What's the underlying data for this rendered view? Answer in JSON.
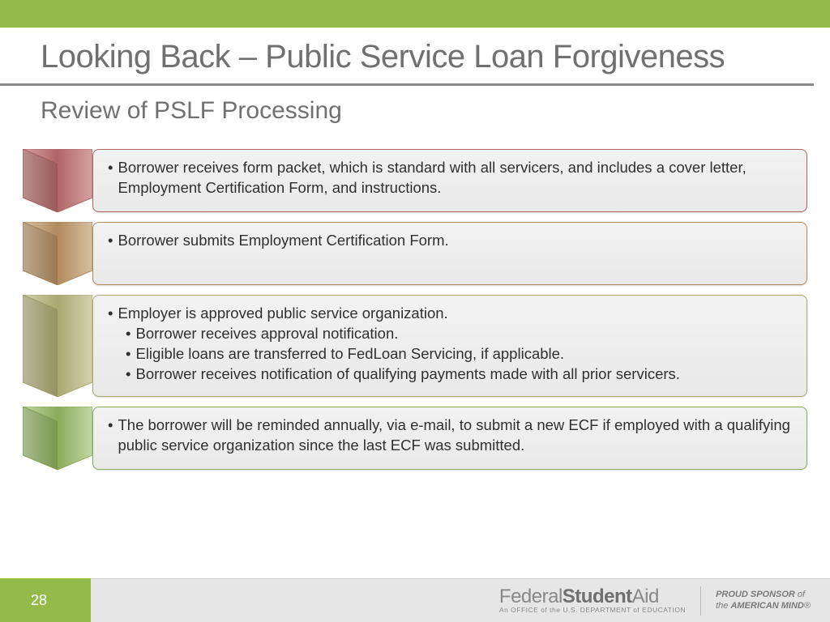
{
  "header": {
    "title_bold": "Looking Back",
    "title_sep": " – ",
    "title_light": "Public Service Loan Forgiveness"
  },
  "subtitle": "Review of PSLF Processing",
  "steps": [
    {
      "chevron_color": "#b06466",
      "chevron_light": "#d4a3a4",
      "border_color": "#b06466",
      "text": "Borrower receives form packet, which is standard with all servicers, and includes a cover letter, Employment Certification Form, and instructions.",
      "subs": []
    },
    {
      "chevron_color": "#b18a5c",
      "chevron_light": "#d6c0a3",
      "border_color": "#b18a5c",
      "text": "Borrower submits Employment Certification Form.",
      "subs": []
    },
    {
      "chevron_color": "#a9a86f",
      "chevron_light": "#d3d2b0",
      "border_color": "#a9a86f",
      "text": "Employer is approved public service organization.",
      "subs": [
        "Borrower receives approval notification.",
        "Eligible loans are transferred to FedLoan Servicing, if applicable.",
        "Borrower receives notification of qualifying payments made with all prior servicers."
      ]
    },
    {
      "chevron_color": "#8aab59",
      "chevron_light": "#c3d7a6",
      "border_color": "#8aab59",
      "text": "The borrower will be reminded annually, via e-mail, to submit a new ECF if employed with a qualifying public service organization since the last ECF was submitted.",
      "subs": []
    }
  ],
  "footer": {
    "page_number": "28",
    "logo": {
      "brand_light": "Federal",
      "brand_bold": "Student",
      "brand_end": "Aid",
      "subline": "An OFFICE of the U.S. DEPARTMENT of EDUCATION"
    },
    "sponsor": {
      "line1_a": "PROUD SPONSOR",
      "line1_b": " of",
      "line2_a": "the ",
      "line2_b": "AMERICAN MIND",
      "mark": "®"
    }
  },
  "layout": {
    "accent_green": "#94bb4a",
    "text_gray": "#707070",
    "chevron_w": 86,
    "chevron_h_short": 78,
    "chevron_h_tall": 126
  }
}
